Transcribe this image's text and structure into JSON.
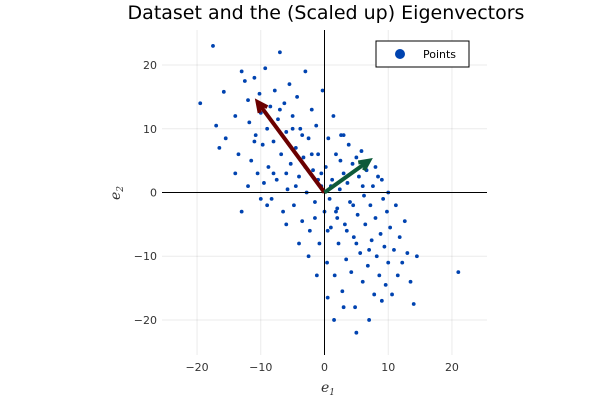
{
  "chart_data": {
    "type": "scatter",
    "title": "Dataset and the (Scaled up) Eigenvectors",
    "xlabel": "e⃗1",
    "ylabel": "e⃗2",
    "xlabel_base": "e",
    "xlabel_sub": "1",
    "ylabel_base": "e",
    "ylabel_sub": "2",
    "xlim": [
      -25.5,
      25.5
    ],
    "ylim": [
      -25.5,
      25.5
    ],
    "xticks": [
      -20,
      -10,
      0,
      10,
      20
    ],
    "yticks": [
      -20,
      -10,
      0,
      10,
      20
    ],
    "xtick_labels": [
      "−20",
      "−10",
      "0",
      "10",
      "20"
    ],
    "ytick_labels": [
      "−20",
      "−10",
      "0",
      "10",
      "20"
    ],
    "grid": true,
    "legend": {
      "position": "top-right",
      "entries": [
        "Points"
      ]
    },
    "colors": {
      "points": "#0043b0",
      "eigenvector1": "#6b0000",
      "eigenvector2": "#0d5a3a",
      "axes": "#000000"
    },
    "eigenvectors": [
      {
        "name": "eigenvector-1",
        "from": [
          0,
          0
        ],
        "to": [
          -10.5,
          14.2
        ]
      },
      {
        "name": "eigenvector-2",
        "from": [
          0,
          0
        ],
        "to": [
          7,
          5
        ]
      }
    ],
    "points": [
      [
        -19.5,
        14
      ],
      [
        -17.5,
        23
      ],
      [
        -17,
        10.5
      ],
      [
        -16.5,
        7
      ],
      [
        -15.8,
        15.8
      ],
      [
        -15.5,
        8.5
      ],
      [
        -14,
        12
      ],
      [
        -13.5,
        6
      ],
      [
        -13,
        19
      ],
      [
        -12.5,
        17.5
      ],
      [
        -12,
        14.5
      ],
      [
        -11.8,
        11
      ],
      [
        -11.5,
        5
      ],
      [
        -11,
        18
      ],
      [
        -10.8,
        9
      ],
      [
        -10.5,
        3
      ],
      [
        -10.2,
        15.5
      ],
      [
        -10,
        12.5
      ],
      [
        -9.7,
        7.5
      ],
      [
        -9.5,
        1.5
      ],
      [
        -9.3,
        19.5
      ],
      [
        -9,
        10
      ],
      [
        -8.8,
        4
      ],
      [
        -8.5,
        13.5
      ],
      [
        -8.3,
        -1
      ],
      [
        -8,
        8
      ],
      [
        -7.8,
        16
      ],
      [
        -7.5,
        2
      ],
      [
        -7.3,
        11.5
      ],
      [
        -7,
        22
      ],
      [
        -6.8,
        6
      ],
      [
        -6.5,
        -3
      ],
      [
        -6.3,
        14
      ],
      [
        -6,
        9.5
      ],
      [
        -5.8,
        0.5
      ],
      [
        -5.5,
        17
      ],
      [
        -5.3,
        4.5
      ],
      [
        -5,
        12
      ],
      [
        -4.8,
        -2
      ],
      [
        -4.5,
        7
      ],
      [
        -4.3,
        15
      ],
      [
        -4,
        2.5
      ],
      [
        -3.8,
        10
      ],
      [
        -3.5,
        -4.5
      ],
      [
        -3.3,
        5.5
      ],
      [
        -3,
        19
      ],
      [
        -2.8,
        0
      ],
      [
        -2.5,
        8.5
      ],
      [
        -2.3,
        -6
      ],
      [
        -2,
        13
      ],
      [
        -1.8,
        3.5
      ],
      [
        -1.5,
        -1.5
      ],
      [
        -1.3,
        10.5
      ],
      [
        -1,
        6
      ],
      [
        -0.8,
        -8
      ],
      [
        -0.5,
        1
      ],
      [
        -0.3,
        16
      ],
      [
        0,
        -3
      ],
      [
        0.2,
        4
      ],
      [
        0.4,
        -11
      ],
      [
        0.6,
        8.5
      ],
      [
        0.8,
        -1
      ],
      [
        1,
        -5.5
      ],
      [
        1.2,
        2
      ],
      [
        1.4,
        12
      ],
      [
        1.6,
        -13
      ],
      [
        1.8,
        6
      ],
      [
        2,
        -2.5
      ],
      [
        2.2,
        -8
      ],
      [
        2.4,
        0.5
      ],
      [
        2.6,
        9
      ],
      [
        2.8,
        -15.5
      ],
      [
        3,
        3
      ],
      [
        3.2,
        -5
      ],
      [
        3.4,
        -10.5
      ],
      [
        3.6,
        1.5
      ],
      [
        3.8,
        7.5
      ],
      [
        4,
        -1.5
      ],
      [
        4.2,
        -12.5
      ],
      [
        4.4,
        4.5
      ],
      [
        4.6,
        -7
      ],
      [
        4.8,
        -18
      ],
      [
        5,
        -22
      ],
      [
        5.2,
        -3.5
      ],
      [
        5.4,
        2.5
      ],
      [
        5.6,
        -9.5
      ],
      [
        5.8,
        6.5
      ],
      [
        6,
        -14
      ],
      [
        6.2,
        -0.5
      ],
      [
        6.4,
        -5
      ],
      [
        6.6,
        3.5
      ],
      [
        6.8,
        -11.5
      ],
      [
        7,
        -20
      ],
      [
        7.2,
        -2
      ],
      [
        7.4,
        -7.5
      ],
      [
        7.6,
        1
      ],
      [
        7.8,
        -16
      ],
      [
        8,
        -4
      ],
      [
        8.2,
        -10
      ],
      [
        8.4,
        2.5
      ],
      [
        8.6,
        -13
      ],
      [
        8.8,
        -6.5
      ],
      [
        9,
        -17
      ],
      [
        9.2,
        -1
      ],
      [
        9.4,
        -8.5
      ],
      [
        9.6,
        -14.5
      ],
      [
        9.8,
        -3
      ],
      [
        10,
        -11
      ],
      [
        10.3,
        -5.5
      ],
      [
        10.6,
        -16
      ],
      [
        10.9,
        -9
      ],
      [
        11.2,
        -2
      ],
      [
        11.5,
        -13
      ],
      [
        11.8,
        -7
      ],
      [
        12.2,
        -11
      ],
      [
        12.6,
        -4.5
      ],
      [
        13,
        -9.5
      ],
      [
        13.5,
        -14
      ],
      [
        14,
        -17.5
      ],
      [
        14.5,
        -10
      ],
      [
        21,
        -12.5
      ],
      [
        -2.5,
        -10
      ],
      [
        -1.2,
        -13
      ],
      [
        0.5,
        -16.5
      ],
      [
        1.5,
        -20
      ],
      [
        -4,
        -8
      ],
      [
        -6,
        -5
      ],
      [
        3,
        -18
      ],
      [
        -8,
        3
      ],
      [
        -11,
        8
      ],
      [
        -3,
        4
      ],
      [
        -1,
        2
      ],
      [
        1,
        1
      ],
      [
        2,
        -4
      ],
      [
        -2,
        6
      ],
      [
        0.5,
        -6
      ],
      [
        -0.5,
        3
      ],
      [
        1.8,
        -3
      ],
      [
        -3.5,
        9
      ],
      [
        3.5,
        -6
      ],
      [
        -5,
        10
      ],
      [
        5,
        -8
      ],
      [
        -7,
        13
      ],
      [
        7,
        -9
      ],
      [
        -1.5,
        -4
      ],
      [
        2.5,
        5
      ],
      [
        -4.5,
        1
      ],
      [
        4.5,
        -2
      ],
      [
        -6,
        3
      ],
      [
        6,
        1
      ],
      [
        8,
        4
      ],
      [
        9,
        2
      ],
      [
        5,
        5.5
      ],
      [
        3,
        9
      ],
      [
        -9,
        -2
      ],
      [
        -12,
        1
      ],
      [
        -13,
        -3
      ],
      [
        -10,
        -1
      ],
      [
        10,
        0
      ],
      [
        -14,
        3
      ]
    ]
  }
}
